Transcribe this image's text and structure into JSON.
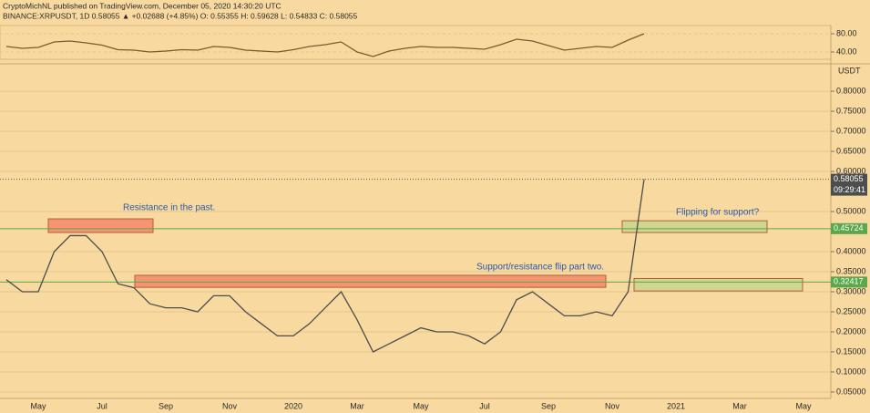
{
  "header": {
    "line1": "CryptoMichNL published on TradingView.com, December 05, 2020 14:30:20 UTC",
    "line2": "BINANCE:XRPUSDT, 1D 0.58055 ▲ +0.02688 (+4.85%) O: 0.55355 H: 0.59628 L: 0.54833 C: 0.58055"
  },
  "chart_data": [
    {
      "type": "line",
      "name": "rsi",
      "color": "#7a5c2e",
      "values": [
        52,
        48,
        50,
        62,
        64,
        60,
        55,
        45,
        44,
        40,
        42,
        45,
        44,
        52,
        50,
        44,
        42,
        40,
        45,
        52,
        56,
        62,
        40,
        30,
        42,
        48,
        52,
        50,
        50,
        48,
        46,
        56,
        68,
        64,
        54,
        44,
        48,
        52,
        50,
        66,
        80,
        null,
        null,
        null,
        null,
        null,
        null,
        null,
        null,
        null,
        null
      ],
      "ylim": [
        24,
        98
      ],
      "yticks": [
        {
          "value": 80,
          "label": "80.00"
        },
        {
          "value": 40,
          "label": "40.00"
        }
      ]
    },
    {
      "type": "line",
      "name": "price",
      "color": "#4d4d4d",
      "unit": "USDT",
      "categories": [
        null,
        null,
        "May",
        null,
        null,
        null,
        "Jul",
        null,
        null,
        null,
        "Sep",
        null,
        null,
        null,
        "Nov",
        null,
        null,
        null,
        "2020",
        null,
        null,
        null,
        "Mar",
        null,
        null,
        null,
        "May",
        null,
        null,
        null,
        "Jul",
        null,
        null,
        null,
        "Sep",
        null,
        null,
        null,
        "Nov",
        null,
        null,
        null,
        "2021",
        null,
        null,
        null,
        "Mar",
        null,
        null,
        null,
        "May"
      ],
      "values": [
        0.33,
        0.3,
        0.3,
        0.4,
        0.44,
        0.44,
        0.4,
        0.32,
        0.31,
        0.27,
        0.26,
        0.26,
        0.25,
        0.29,
        0.29,
        0.25,
        0.22,
        0.19,
        0.19,
        0.22,
        0.26,
        0.3,
        0.23,
        0.15,
        0.17,
        0.19,
        0.21,
        0.2,
        0.2,
        0.19,
        0.17,
        0.2,
        0.28,
        0.3,
        0.27,
        0.24,
        0.24,
        0.25,
        0.24,
        0.3,
        0.58055,
        null,
        null,
        null,
        null,
        null,
        null,
        null,
        null,
        null,
        null
      ],
      "ylim": [
        0.034,
        0.857
      ],
      "yticks": [
        {
          "value": 0.8,
          "label": "0.80000"
        },
        {
          "value": 0.75,
          "label": "0.75000"
        },
        {
          "value": 0.7,
          "label": "0.70000"
        },
        {
          "value": 0.65,
          "label": "0.65000"
        },
        {
          "value": 0.6,
          "label": "0.60000"
        },
        {
          "value": 0.5,
          "label": "0.50000"
        },
        {
          "value": 0.4,
          "label": "0.40000"
        },
        {
          "value": 0.35,
          "label": "0.35000"
        },
        {
          "value": 0.3,
          "label": "0.30000"
        },
        {
          "value": 0.25,
          "label": "0.25000"
        },
        {
          "value": 0.2,
          "label": "0.20000"
        },
        {
          "value": 0.15,
          "label": "0.15000"
        },
        {
          "value": 0.1,
          "label": "0.10000"
        },
        {
          "value": 0.05,
          "label": "0.05000"
        }
      ],
      "current": {
        "value": 0.58055,
        "countdown": "09:29:41"
      },
      "levels": [
        {
          "value": 0.45724,
          "color": "#5aa84a"
        },
        {
          "value": 0.32417,
          "color": "#5aa84a"
        }
      ],
      "zones": [
        {
          "range": [
            0.4477,
            0.4818
          ],
          "color": "#f4866a",
          "text": "Resistance in the past."
        },
        {
          "range": [
            0.311,
            0.341
          ],
          "color": "#f4866a",
          "text": "Support/resistance flip part two."
        },
        {
          "range": [
            0.4477,
            0.477
          ],
          "color": "#c9d48c",
          "text": "Flipping for support?"
        },
        {
          "range": [
            0.302,
            0.333
          ],
          "color": "#c9d48c"
        }
      ]
    }
  ]
}
